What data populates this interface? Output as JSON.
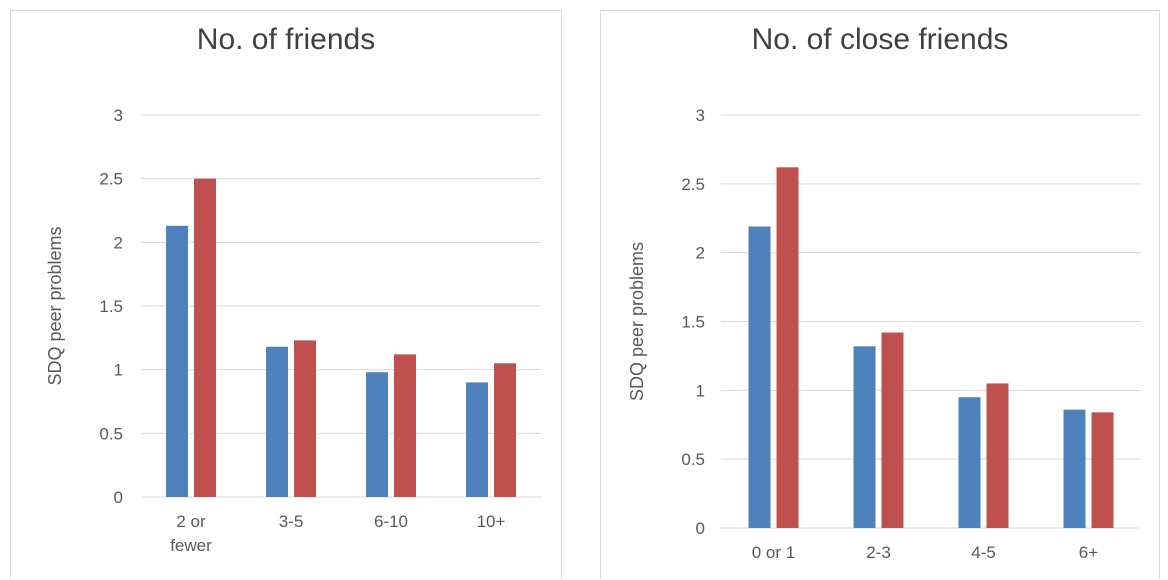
{
  "chart_data": [
    {
      "type": "bar",
      "title": "No. of friends",
      "ylabel": "SDQ peer problems",
      "xlabel": "",
      "categories": [
        "2 or fewer",
        "3-5",
        "6-10",
        "10+"
      ],
      "category_lines": [
        [
          "2 or",
          "fewer"
        ],
        [
          "3-5"
        ],
        [
          "6-10"
        ],
        [
          "10+"
        ]
      ],
      "series": [
        {
          "values": [
            2.13,
            1.18,
            0.98,
            0.9
          ]
        },
        {
          "values": [
            2.5,
            1.23,
            1.12,
            1.05
          ]
        }
      ],
      "ylim": [
        0,
        3
      ],
      "yticks": [
        "0",
        "0.5",
        "1",
        "1.5",
        "2",
        "2.5",
        "3"
      ],
      "grid": true
    },
    {
      "type": "bar",
      "title": "No. of close friends",
      "ylabel": "SDQ peer problems",
      "xlabel": "",
      "categories": [
        "0 or 1",
        "2-3",
        "4-5",
        "6+"
      ],
      "category_lines": [
        [
          "0 or 1"
        ],
        [
          "2-3"
        ],
        [
          "4-5"
        ],
        [
          "6+"
        ]
      ],
      "series": [
        {
          "values": [
            2.19,
            1.32,
            0.95,
            0.86
          ]
        },
        {
          "values": [
            2.62,
            1.42,
            1.05,
            0.84
          ]
        }
      ],
      "ylim": [
        0,
        3
      ],
      "yticks": [
        "0",
        "0.5",
        "1",
        "1.5",
        "2",
        "2.5",
        "3"
      ],
      "grid": true
    }
  ],
  "colors": {
    "series_0": "#4f81bd",
    "series_1": "#c0504d",
    "grid": "#d9d9d9",
    "text": "#595959"
  }
}
